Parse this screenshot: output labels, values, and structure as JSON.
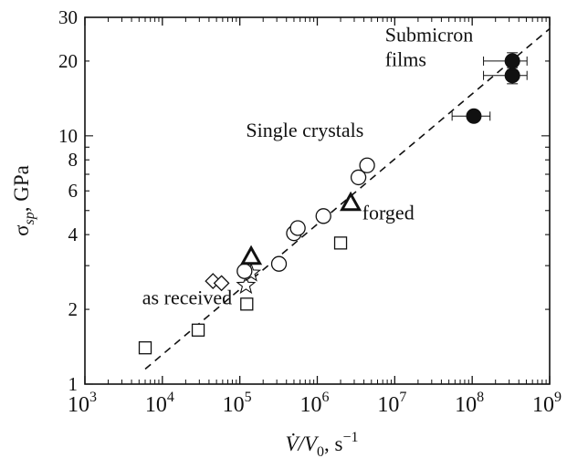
{
  "chart_data": {
    "type": "scatter",
    "x_scale": "log",
    "y_scale": "log",
    "xlim": [
      1000,
      1000000000
    ],
    "ylim": [
      1,
      30
    ],
    "grid": false,
    "xlabel": {
      "main": "V̇/V",
      "sub": "0",
      "tail": ", s",
      "sup": "−1"
    },
    "ylabel": {
      "main": "σ",
      "sub": "sp",
      "tail": ", GPa"
    },
    "x_ticks": [
      {
        "value": 1000,
        "base": "10",
        "exp": "3"
      },
      {
        "value": 10000,
        "base": "10",
        "exp": "4"
      },
      {
        "value": 100000,
        "base": "10",
        "exp": "5"
      },
      {
        "value": 1000000,
        "base": "10",
        "exp": "6"
      },
      {
        "value": 10000000,
        "base": "10",
        "exp": "7"
      },
      {
        "value": 100000000,
        "base": "10",
        "exp": "8"
      },
      {
        "value": 1000000000,
        "base": "10",
        "exp": "9"
      }
    ],
    "y_ticks": [
      {
        "value": 1,
        "label": "1"
      },
      {
        "value": 2,
        "label": "2"
      },
      {
        "value": 4,
        "label": "4"
      },
      {
        "value": 6,
        "label": "6"
      },
      {
        "value": 8,
        "label": "8"
      },
      {
        "value": 10,
        "label": "10"
      },
      {
        "value": 20,
        "label": "20"
      },
      {
        "value": 30,
        "label": "30"
      }
    ],
    "annotations": [
      {
        "id": "submicron",
        "lines": [
          "Submicron",
          "films"
        ],
        "x": 7500000,
        "y": 24
      },
      {
        "id": "single-crystals",
        "lines": [
          "Single crystals"
        ],
        "x": 120000,
        "y": 9.9
      },
      {
        "id": "forged",
        "lines": [
          "forged"
        ],
        "x": 3800000,
        "y": 4.6
      },
      {
        "id": "as-received",
        "lines": [
          "as received"
        ],
        "x": 5500,
        "y": 2.1
      }
    ],
    "fit_line": {
      "style": "dashed",
      "x": [
        6000,
        1000000000
      ],
      "y": [
        1.15,
        27
      ]
    },
    "series": [
      {
        "marker": "square",
        "fill": "open",
        "x": [
          6000,
          29000,
          123000,
          2000000
        ],
        "y": [
          1.4,
          1.65,
          2.1,
          3.7
        ]
      },
      {
        "marker": "diamond",
        "fill": "open",
        "x": [
          45000,
          58000
        ],
        "y": [
          2.6,
          2.55
        ]
      },
      {
        "marker": "star",
        "fill": "open",
        "x": [
          120000,
          140000
        ],
        "y": [
          2.5,
          2.8
        ]
      },
      {
        "marker": "circle",
        "fill": "open",
        "x": [
          115000,
          320000,
          500000,
          560000,
          1200000,
          3400000,
          4400000
        ],
        "y": [
          2.85,
          3.05,
          4.05,
          4.25,
          4.75,
          6.8,
          7.6
        ]
      },
      {
        "marker": "triangle",
        "fill": "open-bold",
        "x": [
          140000,
          2700000
        ],
        "y": [
          3.25,
          5.35
        ]
      },
      {
        "marker": "circle",
        "fill": "filled",
        "x": [
          105000000,
          330000000,
          330000000
        ],
        "y": [
          12,
          17.5,
          20
        ],
        "xerr_low": [
          55000000,
          140000000,
          140000000
        ],
        "xerr_high": [
          170000000,
          510000000,
          510000000
        ],
        "yerr": [
          0,
          1.3,
          1.6
        ]
      }
    ]
  }
}
